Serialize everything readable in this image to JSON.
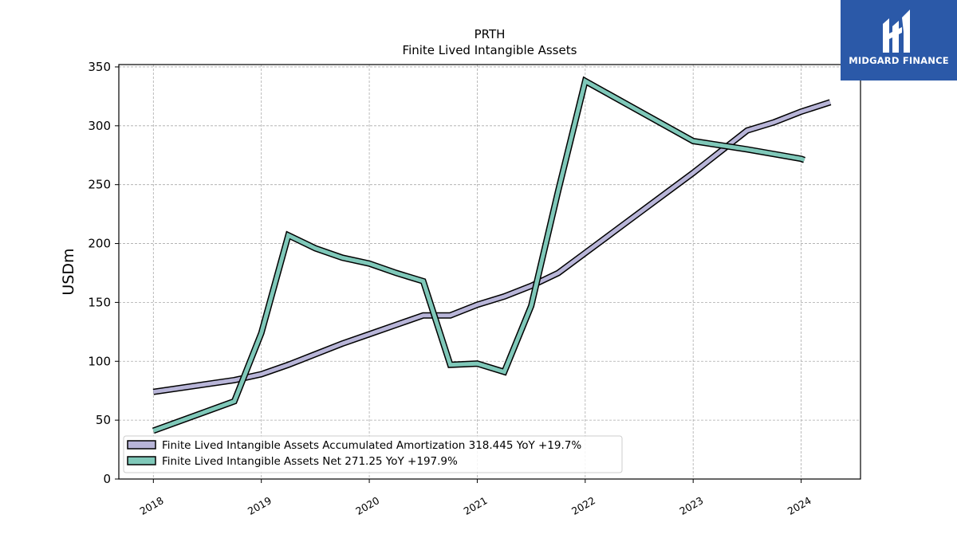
{
  "logo": {
    "text": "MIDGARD FINANCE",
    "icon": "midgard-logo-icon",
    "background": "#2b59a8"
  },
  "chart_data": {
    "type": "line",
    "title": "PRTH",
    "subtitle": "Finite Lived Intangible Assets",
    "xlabel": "",
    "ylabel": "USDm",
    "xlim": [
      2017.68,
      2024.55
    ],
    "ylim": [
      0,
      352
    ],
    "x_ticks": [
      2018,
      2019,
      2020,
      2021,
      2022,
      2023,
      2024
    ],
    "x_tick_labels": [
      "2018",
      "2019",
      "2020",
      "2021",
      "2022",
      "2023",
      "2024"
    ],
    "y_ticks": [
      0,
      50,
      100,
      150,
      200,
      250,
      300,
      350
    ],
    "y_tick_labels": [
      "0",
      "50",
      "100",
      "150",
      "200",
      "250",
      "300",
      "350"
    ],
    "grid": true,
    "legend_position": "bottom-left",
    "series": [
      {
        "name": "Finite Lived Intangible Assets Accumulated Amortization  318.445 YoY +19.7%",
        "color": "#b8b5d8",
        "points": [
          [
            2018.0,
            74
          ],
          [
            2018.75,
            84
          ],
          [
            2019.0,
            89
          ],
          [
            2019.25,
            97
          ],
          [
            2019.5,
            106
          ],
          [
            2019.75,
            115
          ],
          [
            2020.0,
            123
          ],
          [
            2020.25,
            131
          ],
          [
            2020.5,
            139
          ],
          [
            2020.75,
            139
          ],
          [
            2021.0,
            148
          ],
          [
            2021.25,
            155
          ],
          [
            2021.5,
            164
          ],
          [
            2021.75,
            175
          ],
          [
            2022.0,
            192
          ],
          [
            2022.25,
            209
          ],
          [
            2022.5,
            226
          ],
          [
            2022.75,
            243
          ],
          [
            2023.0,
            260
          ],
          [
            2023.25,
            278
          ],
          [
            2023.5,
            296
          ],
          [
            2023.75,
            303
          ],
          [
            2024.0,
            312
          ],
          [
            2024.27,
            320
          ]
        ]
      },
      {
        "name": "Finite Lived Intangible Assets Net  271.25 YoY +197.9%",
        "color": "#7fc8b9",
        "points": [
          [
            2018.0,
            41
          ],
          [
            2018.75,
            66
          ],
          [
            2019.0,
            124
          ],
          [
            2019.25,
            207
          ],
          [
            2019.5,
            196
          ],
          [
            2019.75,
            188
          ],
          [
            2020.0,
            183
          ],
          [
            2020.25,
            175
          ],
          [
            2020.5,
            168
          ],
          [
            2020.75,
            97
          ],
          [
            2021.0,
            98
          ],
          [
            2021.25,
            91
          ],
          [
            2021.5,
            147
          ],
          [
            2021.75,
            245
          ],
          [
            2022.0,
            338
          ],
          [
            2023.0,
            287
          ],
          [
            2023.5,
            280
          ],
          [
            2024.0,
            272
          ],
          [
            2024.03,
            271
          ]
        ]
      }
    ]
  }
}
